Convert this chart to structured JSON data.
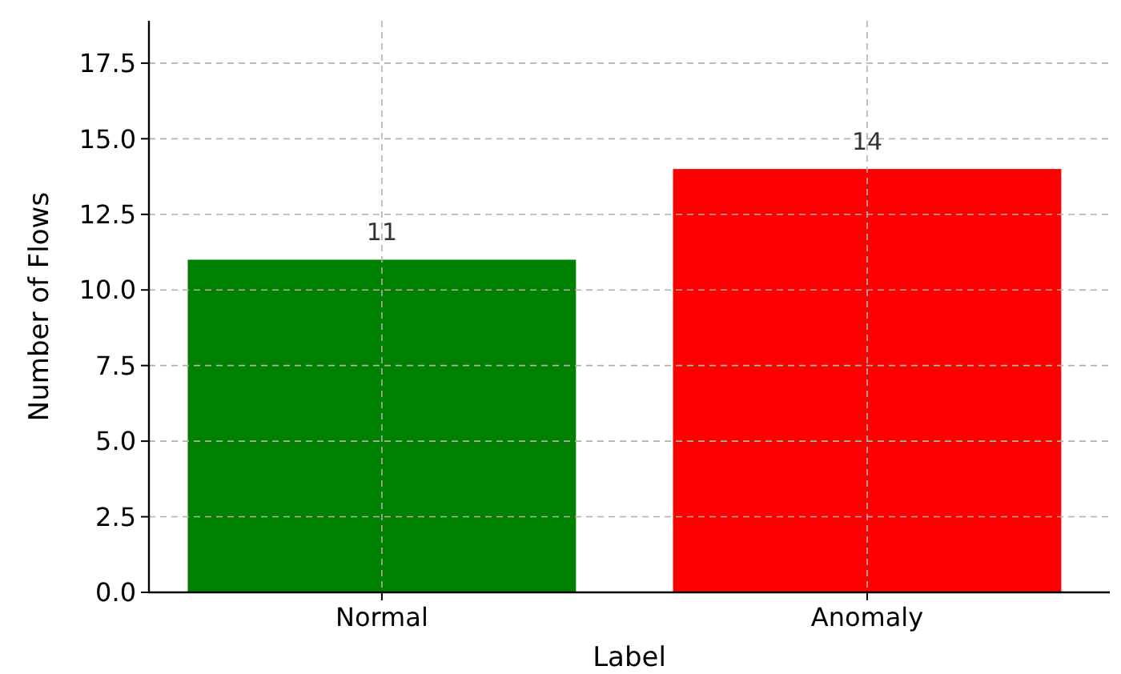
{
  "chart_data": {
    "type": "bar",
    "xlabel": "Label",
    "ylabel": "Number of Flows",
    "categories": [
      "Normal",
      "Anomaly"
    ],
    "values": [
      11,
      14
    ],
    "colors": [
      "#008000",
      "#ff0000"
    ],
    "ylim": [
      0,
      18.9
    ],
    "yticks": [
      {
        "value": 0,
        "label": "0.0"
      },
      {
        "value": 2.5,
        "label": "2.5"
      },
      {
        "value": 5,
        "label": "5.0"
      },
      {
        "value": 7.5,
        "label": "7.5"
      },
      {
        "value": 10,
        "label": "10.0"
      },
      {
        "value": 12.5,
        "label": "12.5"
      },
      {
        "value": 15,
        "label": "15.0"
      },
      {
        "value": 17.5,
        "label": "17.5"
      }
    ],
    "grid": true,
    "data_labels": true
  }
}
